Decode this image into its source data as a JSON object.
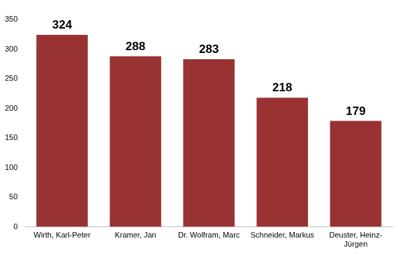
{
  "chart_data": {
    "type": "bar",
    "categories": [
      "Wirth, Karl-Peter",
      "Kramer, Jan",
      "Dr. Wolfram, Marc",
      "Schneider, Markus",
      "Deuster, Heinz-Jürgen"
    ],
    "values": [
      324,
      288,
      283,
      218,
      179
    ],
    "color": "#993333",
    "ylim": [
      0,
      350
    ],
    "yticks": [
      0,
      50,
      100,
      150,
      200,
      250,
      300,
      350
    ],
    "grid": false,
    "data_labels": true
  }
}
